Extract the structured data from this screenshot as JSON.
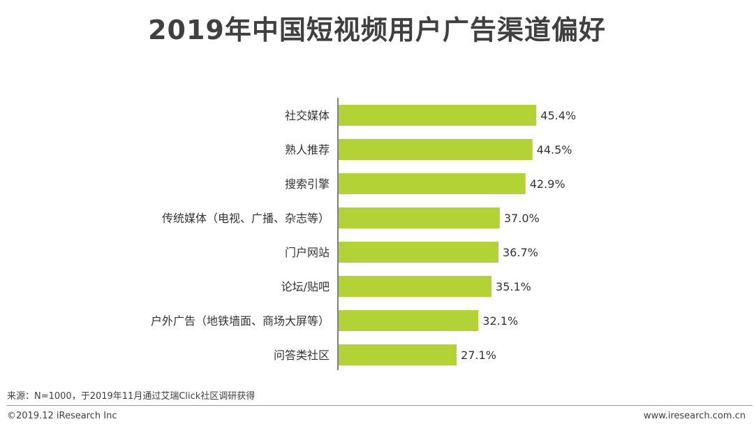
{
  "title": "2019年中国短视频用户广告渠道偏好",
  "chart_data": {
    "type": "bar",
    "orientation": "horizontal",
    "categories": [
      "社交媒体",
      "熟人推荐",
      "搜索引擎",
      "传统媒体（电视、广播、杂志等）",
      "门户网站",
      "论坛/贴吧",
      "户外广告（地铁墙面、商场大屏等）",
      "问答类社区"
    ],
    "values": [
      45.4,
      44.5,
      42.9,
      37.0,
      36.7,
      35.1,
      32.1,
      27.1
    ],
    "value_labels": [
      "45.4%",
      "44.5%",
      "42.9%",
      "37.0%",
      "36.7%",
      "35.1%",
      "32.1%",
      "27.1%"
    ],
    "bar_color": "#b2d235",
    "xlim": [
      0,
      60
    ],
    "grid": false,
    "legend": "none"
  },
  "footer": {
    "source": "来源：N=1000，于2019年11月通过艾瑞Click社区调研获得",
    "copyright": "©2019.12 iResearch Inc",
    "website": "www.iresearch.com.cn"
  }
}
